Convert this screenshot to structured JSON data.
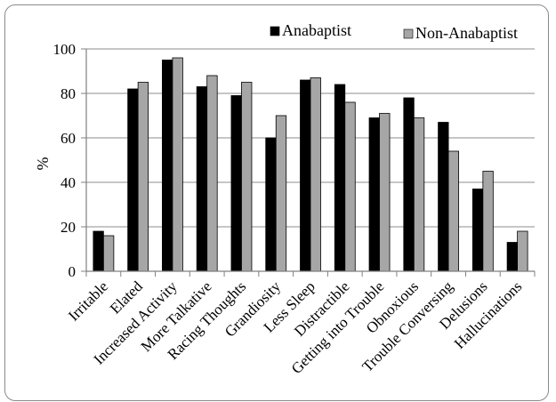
{
  "chart_data": {
    "type": "bar",
    "title": "",
    "xlabel": "",
    "ylabel": "%",
    "ylim": [
      0,
      100
    ],
    "yticks": [
      0,
      20,
      40,
      60,
      80,
      100
    ],
    "grid": true,
    "legend_position": "top-right",
    "categories": [
      "Irritable",
      "Elated",
      "Increased Activity",
      "More Talkative",
      "Racing Thoughts",
      "Grandiosity",
      "Less Sleep",
      "Distractible",
      "Getting into Trouble",
      "Obnoxious",
      "Trouble Conversing",
      "Delusions",
      "Hallucinations"
    ],
    "series": [
      {
        "name": "Anabaptist",
        "color": "#000000",
        "values": [
          18,
          82,
          95,
          83,
          79,
          60,
          86,
          84,
          69,
          78,
          67,
          37,
          13
        ]
      },
      {
        "name": "Non-Anabaptist",
        "color": "#a6a6a6",
        "values": [
          16,
          85,
          96,
          88,
          85,
          70,
          87,
          76,
          71,
          69,
          54,
          45,
          18
        ]
      }
    ]
  }
}
